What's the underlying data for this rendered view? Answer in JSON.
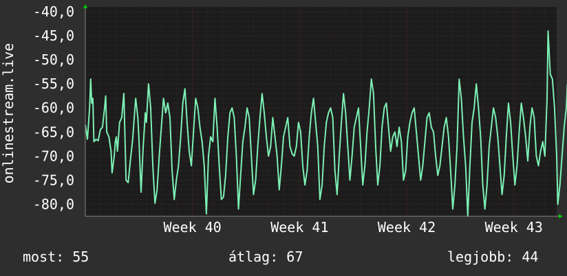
{
  "chart_data": {
    "type": "line",
    "ylabel": "onlinestream.live",
    "ylim": [
      -82.5,
      -39
    ],
    "y_ticks": [
      -40,
      -45,
      -50,
      -55,
      -60,
      -65,
      -70,
      -75,
      -80
    ],
    "y_tick_labels": [
      "-40,0",
      "-45,0",
      "-50,0",
      "-55,0",
      "-60,0",
      "-65,0",
      "-70,0",
      "-75,0",
      "-80,0"
    ],
    "xlim": [
      0,
      4.4
    ],
    "x_ticks": [
      1,
      2,
      3,
      4
    ],
    "x_tick_labels": [
      "Week 40",
      "Week 41",
      "Week 42",
      "Week 43"
    ],
    "colors": {
      "line": "#7cf0b4",
      "background": "#2e2e2e",
      "plot": "#1c1c1c",
      "grid_major": "#5a2a2a",
      "grid_minor": "#3a2a2a",
      "text": "#ffffff",
      "arrow": "#00cc00"
    },
    "grid": true,
    "series": [
      {
        "values": [
          [
            0.0,
            -63.5
          ],
          [
            0.02,
            -66.5
          ],
          [
            0.04,
            -60
          ],
          [
            0.05,
            -54
          ],
          [
            0.06,
            -59
          ],
          [
            0.07,
            -58
          ],
          [
            0.08,
            -67
          ],
          [
            0.1,
            -66.5
          ],
          [
            0.12,
            -66.8
          ],
          [
            0.14,
            -64.5
          ],
          [
            0.16,
            -64
          ],
          [
            0.18,
            -60
          ],
          [
            0.19,
            -57.5
          ],
          [
            0.2,
            -65
          ],
          [
            0.22,
            -66
          ],
          [
            0.24,
            -69
          ],
          [
            0.25,
            -73.5
          ],
          [
            0.27,
            -70
          ],
          [
            0.28,
            -67
          ],
          [
            0.29,
            -66
          ],
          [
            0.3,
            -69
          ],
          [
            0.32,
            -63
          ],
          [
            0.34,
            -62
          ],
          [
            0.36,
            -57
          ],
          [
            0.38,
            -75
          ],
          [
            0.4,
            -75.5
          ],
          [
            0.42,
            -71
          ],
          [
            0.44,
            -67
          ],
          [
            0.45,
            -64
          ],
          [
            0.46,
            -61
          ],
          [
            0.47,
            -58
          ],
          [
            0.49,
            -62
          ],
          [
            0.5,
            -66
          ],
          [
            0.52,
            -77.5
          ],
          [
            0.54,
            -68
          ],
          [
            0.56,
            -61
          ],
          [
            0.57,
            -63
          ],
          [
            0.59,
            -55
          ],
          [
            0.61,
            -60
          ],
          [
            0.63,
            -72
          ],
          [
            0.65,
            -79.8
          ],
          [
            0.67,
            -77
          ],
          [
            0.69,
            -70
          ],
          [
            0.71,
            -64
          ],
          [
            0.73,
            -58
          ],
          [
            0.75,
            -61
          ],
          [
            0.77,
            -59
          ],
          [
            0.79,
            -62
          ],
          [
            0.81,
            -73
          ],
          [
            0.83,
            -79
          ],
          [
            0.85,
            -75
          ],
          [
            0.87,
            -72
          ],
          [
            0.89,
            -66
          ],
          [
            0.91,
            -59
          ],
          [
            0.93,
            -56
          ],
          [
            0.95,
            -63
          ],
          [
            0.97,
            -69
          ],
          [
            0.99,
            -72
          ],
          [
            1.01,
            -65
          ],
          [
            1.03,
            -58
          ],
          [
            1.05,
            -60
          ],
          [
            1.07,
            -64
          ],
          [
            1.09,
            -67
          ],
          [
            1.11,
            -72
          ],
          [
            1.13,
            -82
          ],
          [
            1.15,
            -70
          ],
          [
            1.17,
            -66
          ],
          [
            1.19,
            -67
          ],
          [
            1.21,
            -58
          ],
          [
            1.23,
            -64
          ],
          [
            1.25,
            -72
          ],
          [
            1.27,
            -79
          ],
          [
            1.29,
            -78.5
          ],
          [
            1.31,
            -74
          ],
          [
            1.33,
            -66
          ],
          [
            1.35,
            -61
          ],
          [
            1.37,
            -60
          ],
          [
            1.39,
            -62
          ],
          [
            1.41,
            -70
          ],
          [
            1.43,
            -81
          ],
          [
            1.45,
            -74
          ],
          [
            1.47,
            -67
          ],
          [
            1.49,
            -64
          ],
          [
            1.51,
            -60
          ],
          [
            1.53,
            -62
          ],
          [
            1.55,
            -70
          ],
          [
            1.57,
            -78
          ],
          [
            1.59,
            -75
          ],
          [
            1.61,
            -68
          ],
          [
            1.63,
            -62
          ],
          [
            1.65,
            -57
          ],
          [
            1.67,
            -61
          ],
          [
            1.69,
            -66
          ],
          [
            1.71,
            -70
          ],
          [
            1.73,
            -68
          ],
          [
            1.75,
            -62
          ],
          [
            1.77,
            -66
          ],
          [
            1.79,
            -70
          ],
          [
            1.81,
            -77
          ],
          [
            1.83,
            -72
          ],
          [
            1.85,
            -66
          ],
          [
            1.87,
            -64
          ],
          [
            1.89,
            -62
          ],
          [
            1.91,
            -68
          ],
          [
            1.93,
            -69.5
          ],
          [
            1.95,
            -70
          ],
          [
            1.97,
            -68
          ],
          [
            1.99,
            -63
          ],
          [
            2.01,
            -65
          ],
          [
            2.03,
            -72
          ],
          [
            2.05,
            -76
          ],
          [
            2.07,
            -73
          ],
          [
            2.09,
            -66
          ],
          [
            2.11,
            -61
          ],
          [
            2.13,
            -58
          ],
          [
            2.15,
            -63
          ],
          [
            2.17,
            -68
          ],
          [
            2.19,
            -79
          ],
          [
            2.21,
            -76
          ],
          [
            2.23,
            -68
          ],
          [
            2.25,
            -63
          ],
          [
            2.27,
            -61
          ],
          [
            2.29,
            -60
          ],
          [
            2.31,
            -62
          ],
          [
            2.33,
            -73
          ],
          [
            2.35,
            -78
          ],
          [
            2.37,
            -70
          ],
          [
            2.39,
            -63
          ],
          [
            2.41,
            -57
          ],
          [
            2.43,
            -61
          ],
          [
            2.45,
            -68
          ],
          [
            2.47,
            -75
          ],
          [
            2.49,
            -70
          ],
          [
            2.51,
            -64
          ],
          [
            2.53,
            -62
          ],
          [
            2.55,
            -60
          ],
          [
            2.57,
            -68
          ],
          [
            2.59,
            -76
          ],
          [
            2.61,
            -72
          ],
          [
            2.63,
            -65
          ],
          [
            2.65,
            -60
          ],
          [
            2.67,
            -54
          ],
          [
            2.69,
            -57
          ],
          [
            2.71,
            -68
          ],
          [
            2.73,
            -76
          ],
          [
            2.75,
            -72
          ],
          [
            2.77,
            -64
          ],
          [
            2.79,
            -60
          ],
          [
            2.81,
            -59
          ],
          [
            2.83,
            -64
          ],
          [
            2.85,
            -69
          ],
          [
            2.87,
            -66
          ],
          [
            2.89,
            -65
          ],
          [
            2.91,
            -68
          ],
          [
            2.93,
            -64
          ],
          [
            2.95,
            -67
          ],
          [
            2.97,
            -75
          ],
          [
            2.99,
            -73
          ],
          [
            3.01,
            -66
          ],
          [
            3.03,
            -63
          ],
          [
            3.05,
            -61
          ],
          [
            3.07,
            -60
          ],
          [
            3.09,
            -65
          ],
          [
            3.11,
            -70
          ],
          [
            3.13,
            -75
          ],
          [
            3.15,
            -72
          ],
          [
            3.17,
            -67
          ],
          [
            3.19,
            -62
          ],
          [
            3.21,
            -61
          ],
          [
            3.23,
            -64
          ],
          [
            3.25,
            -65
          ],
          [
            3.27,
            -70
          ],
          [
            3.29,
            -74
          ],
          [
            3.31,
            -72
          ],
          [
            3.33,
            -68
          ],
          [
            3.35,
            -64
          ],
          [
            3.37,
            -62
          ],
          [
            3.39,
            -66
          ],
          [
            3.41,
            -73
          ],
          [
            3.43,
            -81
          ],
          [
            3.45,
            -76
          ],
          [
            3.47,
            -68
          ],
          [
            3.49,
            -54
          ],
          [
            3.51,
            -58
          ],
          [
            3.53,
            -66
          ],
          [
            3.55,
            -72
          ],
          [
            3.57,
            -82.5
          ],
          [
            3.59,
            -72
          ],
          [
            3.61,
            -63
          ],
          [
            3.63,
            -60
          ],
          [
            3.65,
            -55
          ],
          [
            3.67,
            -60
          ],
          [
            3.69,
            -66
          ],
          [
            3.71,
            -76
          ],
          [
            3.73,
            -81
          ],
          [
            3.75,
            -76
          ],
          [
            3.77,
            -68
          ],
          [
            3.79,
            -64
          ],
          [
            3.81,
            -60
          ],
          [
            3.83,
            -62
          ],
          [
            3.85,
            -66
          ],
          [
            3.87,
            -72
          ],
          [
            3.89,
            -78
          ],
          [
            3.91,
            -74
          ],
          [
            3.93,
            -66
          ],
          [
            3.95,
            -59
          ],
          [
            3.97,
            -63
          ],
          [
            3.99,
            -70
          ],
          [
            4.01,
            -76
          ],
          [
            4.03,
            -72
          ],
          [
            4.05,
            -65
          ],
          [
            4.07,
            -59
          ],
          [
            4.09,
            -62
          ],
          [
            4.11,
            -66
          ],
          [
            4.13,
            -71
          ],
          [
            4.15,
            -64
          ],
          [
            4.17,
            -60
          ],
          [
            4.19,
            -62
          ],
          [
            4.21,
            -70
          ],
          [
            4.23,
            -72
          ],
          [
            4.25,
            -69
          ],
          [
            4.27,
            -67
          ],
          [
            4.29,
            -70
          ],
          [
            4.31,
            -58
          ],
          [
            4.32,
            -44
          ],
          [
            4.34,
            -53
          ],
          [
            4.36,
            -54
          ],
          [
            4.38,
            -60
          ],
          [
            4.4,
            -70
          ],
          [
            4.41,
            -80
          ],
          [
            4.43,
            -76
          ],
          [
            4.45,
            -70
          ],
          [
            4.47,
            -64
          ],
          [
            4.49,
            -60
          ],
          [
            4.5,
            -55
          ]
        ]
      }
    ]
  },
  "stats": {
    "now": "most: 55",
    "avg": "átlag: 67",
    "best": "legjobb: 44"
  }
}
